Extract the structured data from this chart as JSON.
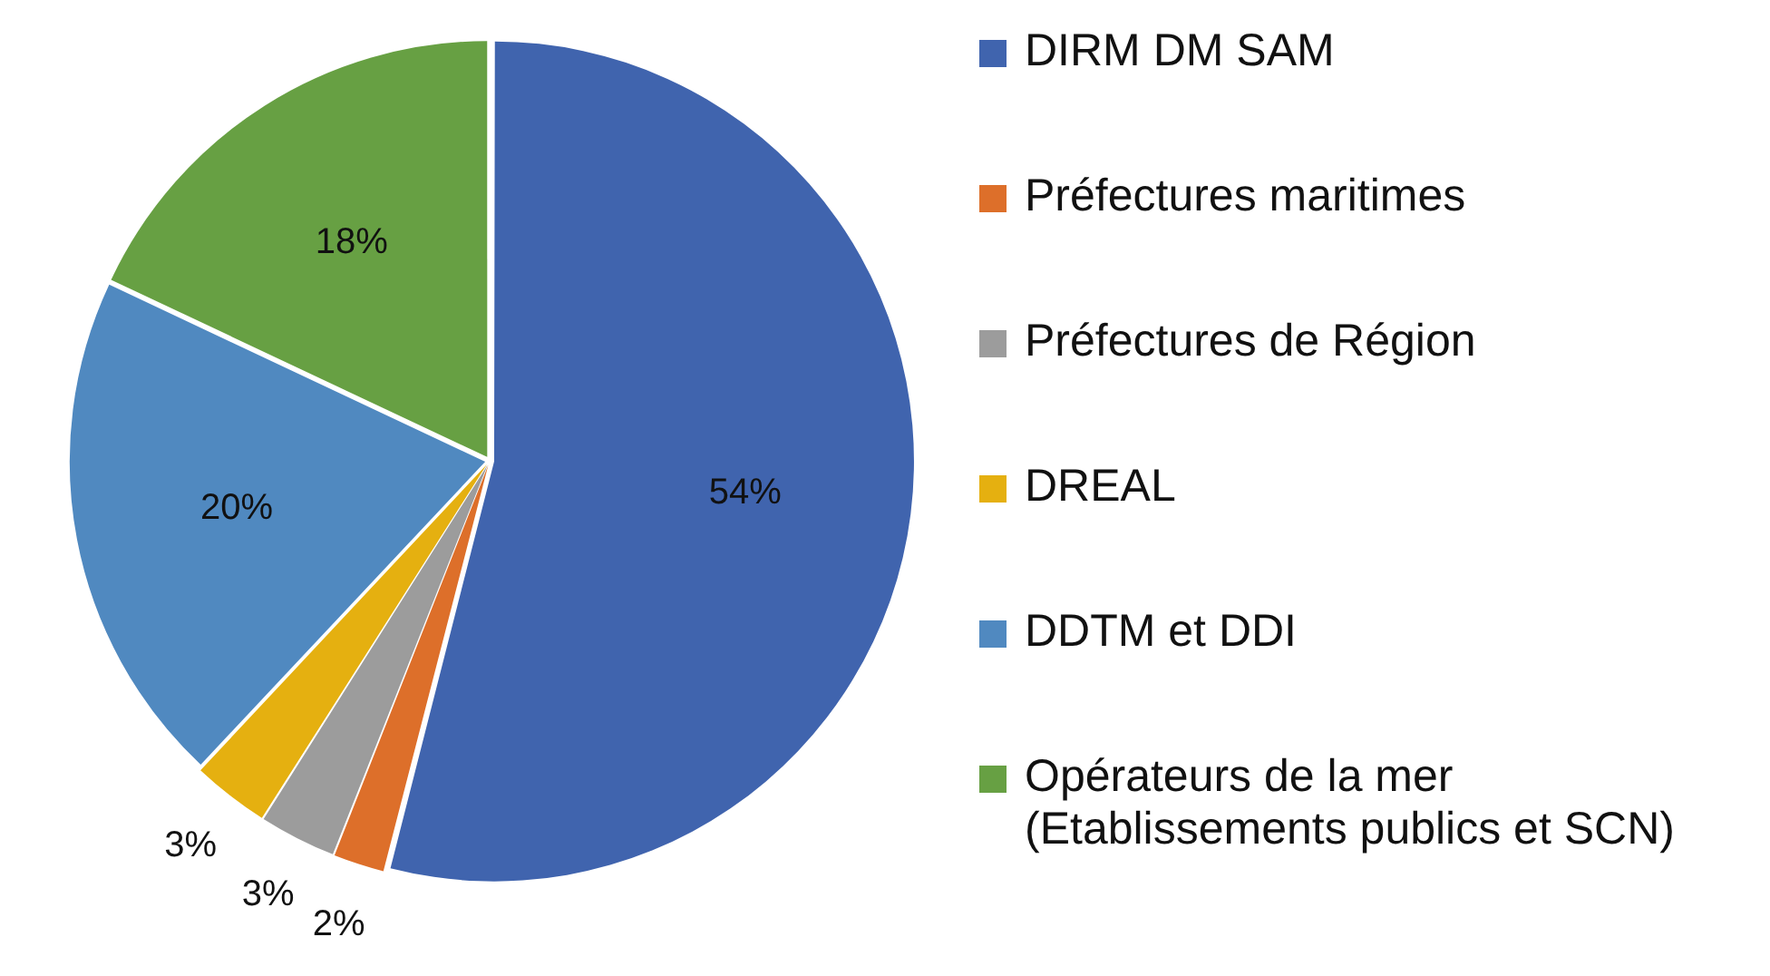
{
  "chart_data": {
    "type": "pie",
    "categories": [
      "DIRM DM SAM",
      "Préfectures maritimes",
      "Préfectures de Région",
      "DREAL",
      "DDTM et DDI",
      "Opérateurs de la mer (Etablissements publics et SCN)"
    ],
    "values": [
      54,
      2,
      3,
      3,
      20,
      18
    ],
    "colors": [
      "#4064ae",
      "#dd6f2a",
      "#9c9c9c",
      "#e5b010",
      "#5089c0",
      "#67a043"
    ],
    "value_labels": [
      "54%",
      "2%",
      "3%",
      "3%",
      "20%",
      "18%"
    ],
    "legend": "right"
  }
}
